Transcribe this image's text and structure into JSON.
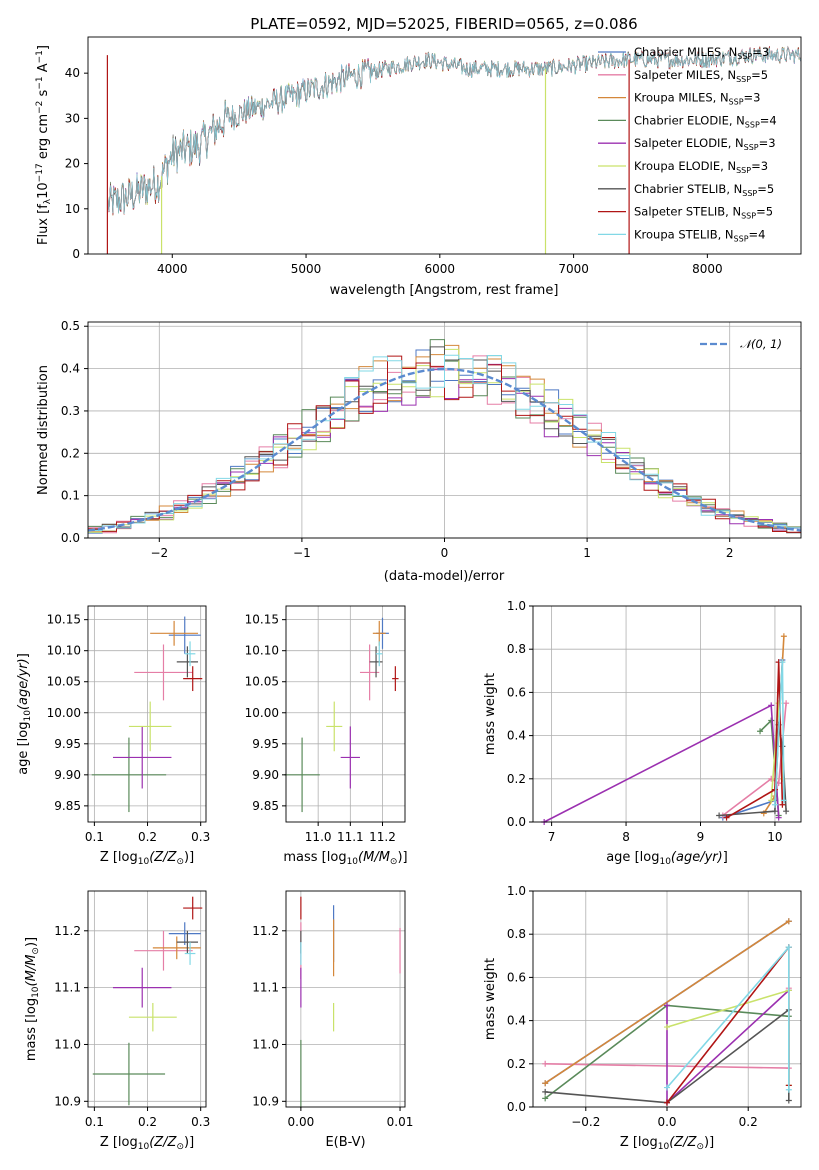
{
  "colors": {
    "Chabrier MILES": "#4f79c4",
    "Salpeter MILES": "#e57ea6",
    "Kroupa MILES": "#d4873a",
    "Chabrier ELODIE": "#5a8a5a",
    "Salpeter ELODIE": "#9b30b0",
    "Kroupa ELODIE": "#c9e26a",
    "Chabrier STELIB": "#555555",
    "Salpeter STELIB": "#b01515",
    "Kroupa STELIB": "#82d8e6",
    "normal": "#5b8bd0"
  },
  "chart_data": [
    {
      "id": "spectrum",
      "type": "line",
      "title": "PLATE=0592, MJD=52025, FIBERID=0565, z=0.086",
      "xlabel": "wavelength [Angstrom, rest frame]",
      "ylabel": "Flux [f",
      "ylabel_sub": "λ",
      "ylabel_mid": "10",
      "ylabel_sup": "−17",
      "ylabel_end": " erg cm",
      "ylabel_sup2": "−2",
      "ylabel_end2": " s",
      "ylabel_sup3": "−1",
      "ylabel_end3": " A",
      "ylabel_sup4": "−1",
      "ylabel_close": "]",
      "xlim": [
        3370,
        8700
      ],
      "ylim": [
        0,
        48
      ],
      "xticks": [
        4000,
        5000,
        6000,
        7000,
        8000
      ],
      "yticks": [
        0,
        10,
        20,
        30,
        40
      ],
      "legend_position": "top-right",
      "legend": [
        {
          "name": "Chabrier MILES, N",
          "sub": "SSP",
          "end": "=3"
        },
        {
          "name": "Salpeter MILES, N",
          "sub": "SSP",
          "end": "=5"
        },
        {
          "name": "Kroupa MILES, N",
          "sub": "SSP",
          "end": "=3"
        },
        {
          "name": "Chabrier ELODIE, N",
          "sub": "SSP",
          "end": "=4"
        },
        {
          "name": "Salpeter ELODIE, N",
          "sub": "SSP",
          "end": "=3"
        },
        {
          "name": "Kroupa ELODIE, N",
          "sub": "SSP",
          "end": "=3"
        },
        {
          "name": "Chabrier STELIB, N",
          "sub": "SSP",
          "end": "=5"
        },
        {
          "name": "Salpeter STELIB, N",
          "sub": "SSP",
          "end": "=5"
        },
        {
          "name": "Kroupa STELIB, N",
          "sub": "SSP",
          "end": "=4"
        }
      ],
      "continuum": [
        {
          "x": 3520,
          "y": 11
        },
        {
          "x": 3700,
          "y": 13
        },
        {
          "x": 3900,
          "y": 16
        },
        {
          "x": 4000,
          "y": 22
        },
        {
          "x": 4200,
          "y": 24
        },
        {
          "x": 4400,
          "y": 30
        },
        {
          "x": 4700,
          "y": 33
        },
        {
          "x": 5000,
          "y": 36
        },
        {
          "x": 5300,
          "y": 39
        },
        {
          "x": 5600,
          "y": 41
        },
        {
          "x": 5900,
          "y": 43
        },
        {
          "x": 6200,
          "y": 41
        },
        {
          "x": 6500,
          "y": 41
        },
        {
          "x": 6800,
          "y": 41
        },
        {
          "x": 7100,
          "y": 42
        },
        {
          "x": 7400,
          "y": 43
        },
        {
          "x": 7700,
          "y": 43
        },
        {
          "x": 8000,
          "y": 43
        },
        {
          "x": 8300,
          "y": 44
        },
        {
          "x": 8700,
          "y": 44
        }
      ],
      "drops": [
        {
          "x": 3515,
          "series": "Salpeter STELIB"
        },
        {
          "x": 3920,
          "series": "Kroupa ELODIE"
        },
        {
          "x": 6790,
          "series": "Kroupa ELODIE"
        },
        {
          "x": 7415,
          "series": "Salpeter STELIB"
        }
      ]
    },
    {
      "id": "residuals",
      "type": "line",
      "xlabel": "(data-model)/error",
      "ylabel": "Normed distribution",
      "xlim": [
        -2.5,
        2.5
      ],
      "ylim": [
        0,
        0.51
      ],
      "xticks": [
        -2,
        -1,
        0,
        1,
        2
      ],
      "yticks": [
        0.0,
        0.1,
        0.2,
        0.3,
        0.4,
        0.5
      ],
      "grid": true,
      "legend_position": "top-right",
      "legend": [
        "𝒩(0, 1)"
      ],
      "bin_width": 0.1,
      "normal_mean": 0,
      "normal_sigma": 1
    },
    {
      "id": "age-vs-Z",
      "type": "scatter",
      "xlabel": "Z [log",
      "ylabel": "age  [log",
      "xlim": [
        0.088,
        0.31
      ],
      "ylim": [
        9.824,
        10.172
      ],
      "xticks": [
        0.1,
        0.2,
        0.3
      ],
      "yticks": [
        9.85,
        9.9,
        9.95,
        10.0,
        10.05,
        10.1,
        10.15
      ],
      "points": [
        {
          "series": "Chabrier MILES",
          "x": 0.27,
          "y": 10.125,
          "xerr": 0.03,
          "yerr": 0.03
        },
        {
          "series": "Salpeter MILES",
          "x": 0.23,
          "y": 10.065,
          "xerr": 0.055,
          "yerr": 0.045
        },
        {
          "series": "Kroupa MILES",
          "x": 0.25,
          "y": 10.128,
          "xerr": 0.045,
          "yerr": 0.02
        },
        {
          "series": "Chabrier ELODIE",
          "x": 0.165,
          "y": 9.9,
          "xerr": 0.07,
          "yerr": 0.06
        },
        {
          "series": "Salpeter ELODIE",
          "x": 0.19,
          "y": 9.928,
          "xerr": 0.055,
          "yerr": 0.05
        },
        {
          "series": "Kroupa ELODIE",
          "x": 0.205,
          "y": 9.978,
          "xerr": 0.04,
          "yerr": 0.04
        },
        {
          "series": "Chabrier STELIB",
          "x": 0.275,
          "y": 10.082,
          "xerr": 0.02,
          "yerr": 0.025
        },
        {
          "series": "Salpeter STELIB",
          "x": 0.285,
          "y": 10.055,
          "xerr": 0.018,
          "yerr": 0.02
        },
        {
          "series": "Kroupa STELIB",
          "x": 0.28,
          "y": 10.095,
          "xerr": 0.01,
          "yerr": 0.02
        }
      ]
    },
    {
      "id": "age-vs-mass",
      "type": "scatter",
      "xlabel": "mass [log",
      "xlim": [
        10.9,
        11.27
      ],
      "ylim": [
        9.824,
        10.172
      ],
      "xticks": [
        11.0,
        11.1,
        11.2
      ],
      "yticks": [
        9.85,
        9.9,
        9.95,
        10.0,
        10.05,
        10.1,
        10.15
      ],
      "points": [
        {
          "series": "Chabrier MILES",
          "x": 11.2,
          "y": 10.128,
          "xerr": 0.02,
          "yerr": 0.025
        },
        {
          "series": "Salpeter MILES",
          "x": 11.16,
          "y": 10.065,
          "xerr": 0.03,
          "yerr": 0.045
        },
        {
          "series": "Kroupa MILES",
          "x": 11.19,
          "y": 10.128,
          "xerr": 0.02,
          "yerr": 0.02
        },
        {
          "series": "Chabrier ELODIE",
          "x": 10.95,
          "y": 9.9,
          "xerr": 0.055,
          "yerr": 0.06
        },
        {
          "series": "Salpeter ELODIE",
          "x": 11.1,
          "y": 9.928,
          "xerr": 0.03,
          "yerr": 0.05
        },
        {
          "series": "Kroupa ELODIE",
          "x": 11.05,
          "y": 9.978,
          "xerr": 0.025,
          "yerr": 0.04
        },
        {
          "series": "Chabrier STELIB",
          "x": 11.18,
          "y": 10.082,
          "xerr": 0.02,
          "yerr": 0.025
        },
        {
          "series": "Salpeter STELIB",
          "x": 11.24,
          "y": 10.055,
          "xerr": 0.01,
          "yerr": 0.02
        },
        {
          "series": "Kroupa STELIB",
          "x": 11.19,
          "y": 10.095,
          "xerr": 0.01,
          "yerr": 0.02
        }
      ]
    },
    {
      "id": "weight-vs-age",
      "type": "line",
      "xlabel": "age  [log",
      "ylabel": "mass weight",
      "xlim": [
        6.75,
        10.35
      ],
      "ylim": [
        0,
        1.0
      ],
      "xticks": [
        7,
        8,
        9,
        10
      ],
      "yticks": [
        0.0,
        0.2,
        0.4,
        0.6,
        0.8,
        1.0
      ],
      "grid": true,
      "series": [
        {
          "name": "Chabrier MILES",
          "points": [
            [
              9.3,
              0.02
            ],
            [
              10.0,
              0.1
            ],
            [
              10.1,
              0.75
            ]
          ]
        },
        {
          "name": "Salpeter MILES",
          "points": [
            [
              9.3,
              0.03
            ],
            [
              9.95,
              0.2
            ],
            [
              10.05,
              0.18
            ],
            [
              10.15,
              0.55
            ]
          ]
        },
        {
          "name": "Kroupa MILES",
          "points": [
            [
              9.85,
              0.04
            ],
            [
              10.0,
              0.12
            ],
            [
              10.12,
              0.86
            ]
          ]
        },
        {
          "name": "Chabrier ELODIE",
          "points": [
            [
              9.8,
              0.42
            ],
            [
              9.95,
              0.47
            ],
            [
              10.05,
              0.03
            ]
          ]
        },
        {
          "name": "Salpeter ELODIE",
          "points": [
            [
              6.9,
              0.0
            ],
            [
              9.95,
              0.54
            ],
            [
              10.05,
              0.02
            ]
          ]
        },
        {
          "name": "Kroupa ELODIE",
          "points": [
            [
              9.95,
              0.1
            ],
            [
              10.05,
              0.55
            ],
            [
              10.1,
              0.2
            ]
          ]
        },
        {
          "name": "Chabrier STELIB",
          "points": [
            [
              9.25,
              0.03
            ],
            [
              10.0,
              0.05
            ],
            [
              10.05,
              0.45
            ],
            [
              10.1,
              0.35
            ],
            [
              10.15,
              0.05
            ]
          ]
        },
        {
          "name": "Salpeter STELIB",
          "points": [
            [
              9.35,
              0.02
            ],
            [
              10.0,
              0.15
            ],
            [
              10.05,
              0.74
            ],
            [
              10.1,
              0.08
            ]
          ]
        },
        {
          "name": "Kroupa STELIB",
          "points": [
            [
              10.0,
              0.08
            ],
            [
              10.1,
              0.74
            ],
            [
              10.12,
              0.1
            ]
          ]
        }
      ]
    },
    {
      "id": "mass-vs-Z",
      "type": "scatter",
      "xlabel": "Z [log",
      "ylabel": "mass [log",
      "xlim": [
        0.088,
        0.31
      ],
      "ylim": [
        10.89,
        11.27
      ],
      "xticks": [
        0.1,
        0.2,
        0.3
      ],
      "yticks": [
        10.9,
        11.0,
        11.1,
        11.2
      ],
      "points": [
        {
          "series": "Chabrier MILES",
          "x": 0.27,
          "y": 11.195,
          "xerr": 0.03,
          "yerr": 0.02
        },
        {
          "series": "Salpeter MILES",
          "x": 0.23,
          "y": 11.165,
          "xerr": 0.055,
          "yerr": 0.035
        },
        {
          "series": "Kroupa MILES",
          "x": 0.255,
          "y": 11.17,
          "xerr": 0.045,
          "yerr": 0.02
        },
        {
          "series": "Chabrier ELODIE",
          "x": 0.165,
          "y": 10.948,
          "xerr": 0.068,
          "yerr": 0.055
        },
        {
          "series": "Salpeter ELODIE",
          "x": 0.19,
          "y": 11.1,
          "xerr": 0.055,
          "yerr": 0.035
        },
        {
          "series": "Kroupa ELODIE",
          "x": 0.21,
          "y": 11.048,
          "xerr": 0.045,
          "yerr": 0.025
        },
        {
          "series": "Chabrier STELIB",
          "x": 0.275,
          "y": 11.18,
          "xerr": 0.02,
          "yerr": 0.02
        },
        {
          "series": "Salpeter STELIB",
          "x": 0.285,
          "y": 11.24,
          "xerr": 0.018,
          "yerr": 0.02
        },
        {
          "series": "Kroupa STELIB",
          "x": 0.28,
          "y": 11.16,
          "xerr": 0.01,
          "yerr": 0.02
        }
      ]
    },
    {
      "id": "mass-vs-ebv",
      "type": "scatter",
      "xlabel": "E(B-V)",
      "xlim": [
        -0.0015,
        0.0105
      ],
      "ylim": [
        10.89,
        11.27
      ],
      "xticks": [
        0.0,
        0.01
      ],
      "yticks": [
        10.9,
        11.0,
        11.1,
        11.2
      ],
      "points": [
        {
          "series": "Chabrier MILES",
          "x": 0.0033,
          "y": 11.195,
          "xerr": 0.0,
          "yerr": 0.05
        },
        {
          "series": "Salpeter MILES",
          "x": 0.0,
          "y": 11.165,
          "xerr": 0.0,
          "yerr": 0.05
        },
        {
          "series": "Kroupa MILES",
          "x": 0.0033,
          "y": 11.17,
          "xerr": 0.0,
          "yerr": 0.05
        },
        {
          "series": "Chabrier ELODIE",
          "x": 0.0,
          "y": 10.948,
          "xerr": 0.0,
          "yerr": 0.06
        },
        {
          "series": "Salpeter ELODIE",
          "x": 0.0,
          "y": 11.1,
          "xerr": 0.0,
          "yerr": 0.035
        },
        {
          "series": "Kroupa ELODIE",
          "x": 0.0033,
          "y": 11.048,
          "xerr": 0.0,
          "yerr": 0.025
        },
        {
          "series": "Chabrier STELIB",
          "x": 0.0,
          "y": 11.18,
          "xerr": 0.0,
          "yerr": 0.02
        },
        {
          "series": "Salpeter STELIB",
          "x": 0.0,
          "y": 11.24,
          "xerr": 0.0,
          "yerr": 0.02
        },
        {
          "series": "Kroupa STELIB",
          "x": 0.0,
          "y": 11.16,
          "xerr": 0.0,
          "yerr": 0.02
        },
        {
          "series": "Salpeter MILES",
          "x": 0.01,
          "y": 11.165,
          "xerr": 0.0,
          "yerr": 0.04
        }
      ]
    },
    {
      "id": "weight-vs-Z",
      "type": "line",
      "xlabel": "Z [log",
      "ylabel": "mass weight",
      "xlim": [
        -0.33,
        0.33
      ],
      "ylim": [
        0,
        1.0
      ],
      "xticks": [
        -0.2,
        0.0,
        0.2
      ],
      "yticks": [
        0.0,
        0.2,
        0.4,
        0.6,
        0.8,
        1.0
      ],
      "grid": true,
      "series": [
        {
          "name": "Chabrier MILES",
          "points": [
            [
              -0.3,
              0.11
            ],
            [
              0.3,
              0.86
            ]
          ]
        },
        {
          "name": "Salpeter MILES",
          "points": [
            [
              -0.3,
              0.2
            ],
            [
              0.3,
              0.18
            ],
            [
              0.3,
              0.55
            ]
          ]
        },
        {
          "name": "Kroupa MILES",
          "points": [
            [
              -0.3,
              0.11
            ],
            [
              0.3,
              0.86
            ]
          ]
        },
        {
          "name": "Chabrier ELODIE",
          "points": [
            [
              -0.3,
              0.04
            ],
            [
              0.0,
              0.47
            ],
            [
              0.3,
              0.42
            ]
          ]
        },
        {
          "name": "Salpeter ELODIE",
          "points": [
            [
              0.0,
              0.47
            ],
            [
              0.0,
              0.02
            ],
            [
              0.3,
              0.54
            ]
          ]
        },
        {
          "name": "Kroupa ELODIE",
          "points": [
            [
              0.0,
              0.37
            ],
            [
              0.3,
              0.54
            ],
            [
              0.3,
              0.1
            ]
          ]
        },
        {
          "name": "Chabrier STELIB",
          "points": [
            [
              -0.3,
              0.07
            ],
            [
              0.0,
              0.02
            ],
            [
              0.3,
              0.45
            ],
            [
              0.3,
              0.03
            ]
          ]
        },
        {
          "name": "Salpeter STELIB",
          "points": [
            [
              0.0,
              0.02
            ],
            [
              0.3,
              0.74
            ],
            [
              0.3,
              0.1
            ]
          ]
        },
        {
          "name": "Kroupa STELIB",
          "points": [
            [
              0.0,
              0.09
            ],
            [
              0.3,
              0.74
            ],
            [
              0.3,
              0.08
            ]
          ]
        }
      ]
    }
  ],
  "panel_labels": {
    "Z_unit": "(Z/Z",
    "mass_unit": "(M/M",
    "age_unit": "(age/yr)",
    "sun": "⊙",
    "sub10": "10",
    "close": ")]"
  }
}
